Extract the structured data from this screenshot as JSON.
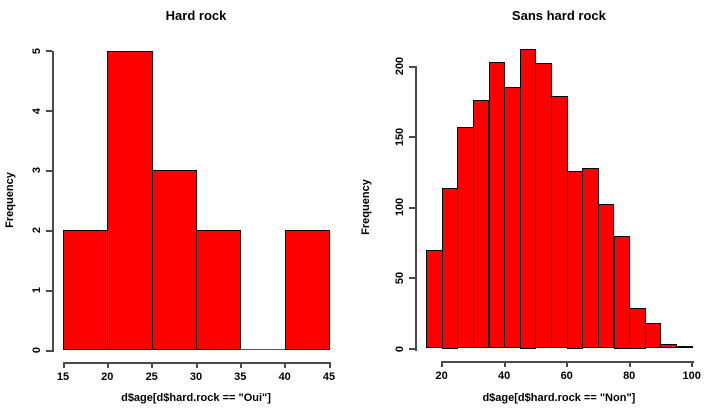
{
  "figure": {
    "background": "#ffffff",
    "bar_fill": "#ff0000",
    "bar_border": "#000000",
    "axis_color": "#4a4a4a",
    "text_color": "#000000"
  },
  "chart_data": [
    {
      "type": "bar",
      "subtype": "histogram",
      "title": "Hard rock",
      "xlabel": "d$age[d$hard.rock == \"Oui\"]",
      "ylabel": "Frequency",
      "bin_start": 15,
      "bin_width": 5,
      "bin_edges": [
        15,
        20,
        25,
        30,
        35,
        40,
        45
      ],
      "values": [
        2,
        5,
        3,
        2,
        0,
        2
      ],
      "x_ticks": [
        15,
        20,
        25,
        30,
        35,
        40,
        45
      ],
      "y_ticks": [
        0,
        1,
        2,
        3,
        4,
        5
      ],
      "xlim": [
        15,
        45
      ],
      "ylim": [
        0,
        5
      ],
      "grid": false,
      "legend": false
    },
    {
      "type": "bar",
      "subtype": "histogram",
      "title": "Sans hard rock",
      "xlabel": "d$age[d$hard.rock == \"Non\"]",
      "ylabel": "Frequency",
      "bin_start": 15,
      "bin_width": 5,
      "bin_edges": [
        15,
        20,
        25,
        30,
        35,
        40,
        45,
        50,
        55,
        60,
        65,
        70,
        75,
        80,
        85,
        90,
        95,
        100
      ],
      "values": [
        70,
        114,
        157,
        176,
        203,
        185,
        212,
        202,
        179,
        126,
        128,
        102,
        80,
        29,
        18,
        3,
        2
      ],
      "x_ticks": [
        20,
        40,
        60,
        80,
        100
      ],
      "y_ticks": [
        0,
        50,
        100,
        150,
        200
      ],
      "xlim": [
        15,
        100
      ],
      "ylim": [
        0,
        212
      ],
      "grid": false,
      "legend": false
    }
  ]
}
